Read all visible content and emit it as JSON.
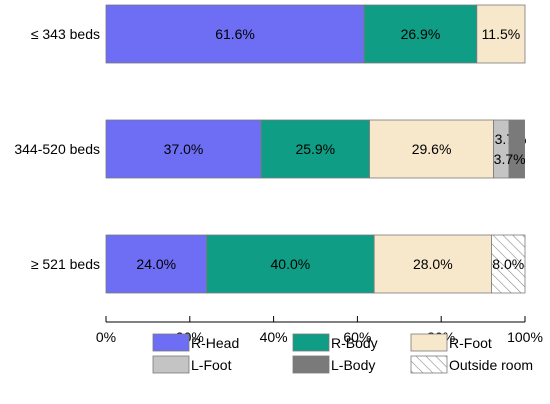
{
  "chart_data": {
    "type": "bar",
    "orientation": "horizontal",
    "stacked": true,
    "categories": [
      "≤ 343  beds",
      "344-520 beds",
      "≥ 521 beds"
    ],
    "series": [
      {
        "name": "R-Head",
        "color": "#6e6ef5",
        "values": [
          61.6,
          37.0,
          24.0
        ],
        "labels": [
          "61.6%",
          "37.0%",
          "24.0%"
        ]
      },
      {
        "name": "R-Body",
        "color": "#0f9e85",
        "values": [
          26.9,
          25.9,
          40.0
        ],
        "labels": [
          "26.9%",
          "25.9%",
          "40.0%"
        ]
      },
      {
        "name": "R-Foot",
        "color": "#f7e7cb",
        "values": [
          11.5,
          29.6,
          28.0
        ],
        "labels": [
          "11.5%",
          "29.6%",
          "28.0%"
        ]
      },
      {
        "name": "L-Foot",
        "color": "#c4c4c4",
        "values": [
          0,
          3.7,
          0
        ],
        "labels": [
          "",
          "3.7%",
          ""
        ]
      },
      {
        "name": "L-Body",
        "color": "#7a7a7a",
        "values": [
          0,
          3.7,
          0
        ],
        "labels": [
          "",
          "3.7%",
          ""
        ]
      },
      {
        "name": "Outside room",
        "color": "hatch",
        "values": [
          0,
          0,
          8.0
        ],
        "labels": [
          "",
          "",
          "8.0%"
        ]
      }
    ],
    "xlim": [
      0,
      100
    ],
    "xticks": [
      "0%",
      "20%",
      "40%",
      "60%",
      "80%",
      "100%"
    ],
    "legend": "bottom",
    "grid": false
  }
}
